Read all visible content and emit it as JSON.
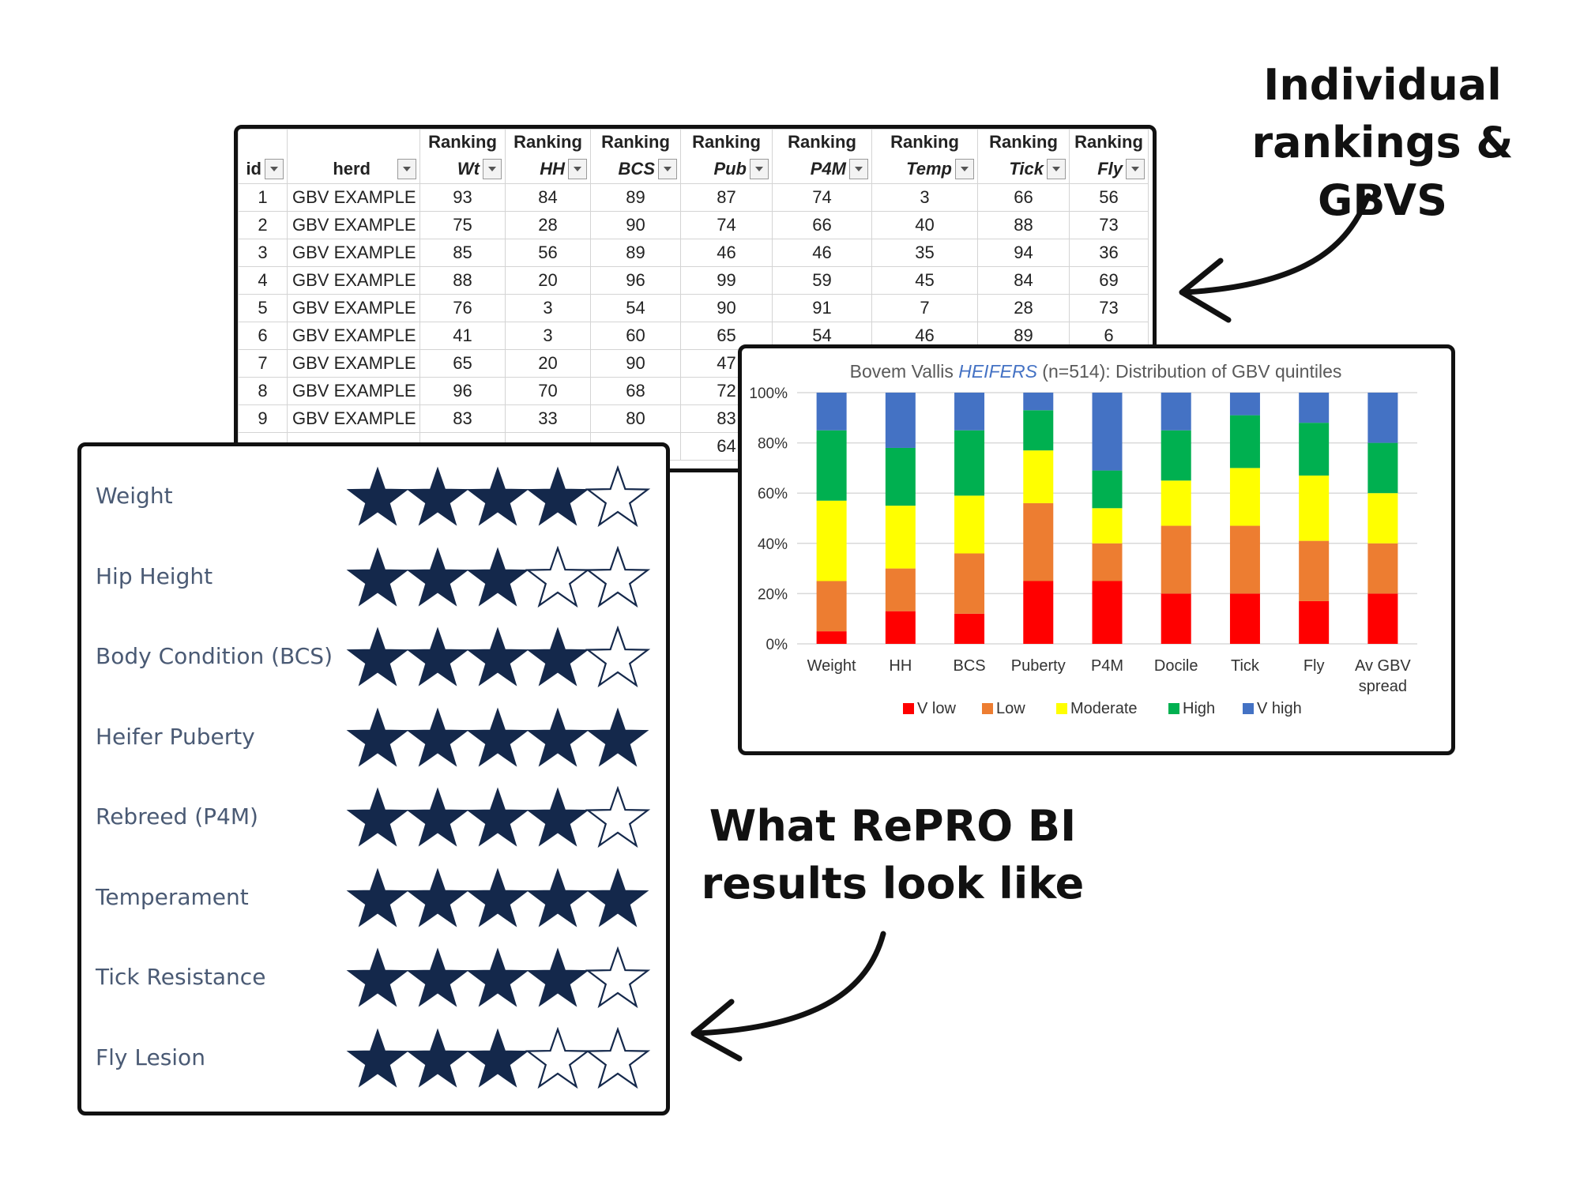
{
  "callouts": {
    "top_line1": "Individual",
    "top_line2": "rankings & GBVS",
    "bottom_line1": "What RePRO BI",
    "bottom_line2": "results look like"
  },
  "sheet": {
    "header_top": [
      "",
      "",
      "Ranking",
      "Ranking",
      "Ranking",
      "Ranking",
      "Ranking",
      "Ranking",
      "Ranking",
      "Ranking"
    ],
    "header": [
      "id",
      "herd",
      "Wt",
      "HH",
      "BCS",
      "Pub",
      "P4M",
      "Temp",
      "Tick",
      "Fly"
    ],
    "rows": [
      [
        "1",
        "GBV EXAMPLE",
        "93",
        "84",
        "89",
        "87",
        "74",
        "3",
        "66",
        "56"
      ],
      [
        "2",
        "GBV EXAMPLE",
        "75",
        "28",
        "90",
        "74",
        "66",
        "40",
        "88",
        "73"
      ],
      [
        "3",
        "GBV EXAMPLE",
        "85",
        "56",
        "89",
        "46",
        "46",
        "35",
        "94",
        "36"
      ],
      [
        "4",
        "GBV EXAMPLE",
        "88",
        "20",
        "96",
        "99",
        "59",
        "45",
        "84",
        "69"
      ],
      [
        "5",
        "GBV EXAMPLE",
        "76",
        "3",
        "54",
        "90",
        "91",
        "7",
        "28",
        "73"
      ],
      [
        "6",
        "GBV EXAMPLE",
        "41",
        "3",
        "60",
        "65",
        "54",
        "46",
        "89",
        "6"
      ],
      [
        "7",
        "GBV EXAMPLE",
        "65",
        "20",
        "90",
        "47",
        "",
        "",
        "",
        ""
      ],
      [
        "8",
        "GBV EXAMPLE",
        "96",
        "70",
        "68",
        "72",
        "",
        "",
        "",
        ""
      ],
      [
        "9",
        "GBV EXAMPLE",
        "83",
        "33",
        "80",
        "83",
        "",
        "",
        "",
        ""
      ],
      [
        "",
        "",
        "",
        "",
        "",
        "64",
        "",
        "",
        "",
        ""
      ]
    ]
  },
  "chart_data": {
    "type": "bar",
    "stacked": true,
    "title_prefix": "Bovem Vallis ",
    "title_emphasis": "HEIFERS",
    "title_suffix": " (n=514): Distribution of GBV quintiles",
    "categories": [
      "Weight",
      "HH",
      "BCS",
      "Puberty",
      "P4M",
      "Docile",
      "Tick",
      "Fly",
      "Av GBV spread"
    ],
    "category_lines": [
      [
        "Weight"
      ],
      [
        "HH"
      ],
      [
        "BCS"
      ],
      [
        "Puberty"
      ],
      [
        "P4M"
      ],
      [
        "Docile"
      ],
      [
        "Tick"
      ],
      [
        "Fly"
      ],
      [
        "Av GBV",
        "spread"
      ]
    ],
    "series": [
      {
        "name": "V low",
        "color": "#FF0000",
        "values": [
          5,
          13,
          12,
          25,
          25,
          20,
          20,
          17,
          20
        ]
      },
      {
        "name": "Low",
        "color": "#ED7D31",
        "values": [
          20,
          17,
          24,
          31,
          15,
          27,
          27,
          24,
          20
        ]
      },
      {
        "name": "Moderate",
        "color": "#FFFF00",
        "values": [
          32,
          25,
          23,
          21,
          14,
          18,
          23,
          26,
          20
        ]
      },
      {
        "name": "High",
        "color": "#00B050",
        "values": [
          28,
          23,
          26,
          16,
          15,
          20,
          21,
          21,
          20
        ]
      },
      {
        "name": "V high",
        "color": "#4472C4",
        "values": [
          15,
          22,
          15,
          7,
          31,
          15,
          9,
          12,
          20
        ]
      }
    ],
    "yticks": [
      "0%",
      "20%",
      "40%",
      "60%",
      "80%",
      "100%"
    ],
    "ylim": [
      0,
      100
    ],
    "legend_position": "bottom",
    "grid": true
  },
  "star_ratings": {
    "color": "#14284B",
    "max": 5,
    "items": [
      {
        "label": "Weight",
        "stars": 4
      },
      {
        "label": "Hip Height",
        "stars": 3
      },
      {
        "label": "Body Condition (BCS)",
        "stars": 4
      },
      {
        "label": "Heifer Puberty",
        "stars": 5
      },
      {
        "label": "Rebreed (P4M)",
        "stars": 4
      },
      {
        "label": "Temperament",
        "stars": 5
      },
      {
        "label": "Tick Resistance",
        "stars": 4
      },
      {
        "label": "Fly Lesion",
        "stars": 3
      }
    ]
  }
}
